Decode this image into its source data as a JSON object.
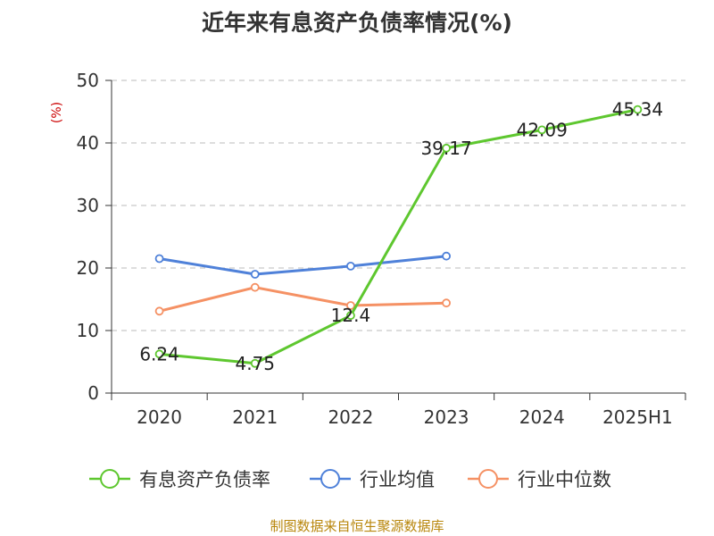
{
  "chart_data": {
    "type": "line",
    "title": "近年来有息资产负债率情况(%)",
    "ylabel": "(%)",
    "categories": [
      "2020",
      "2021",
      "2022",
      "2023",
      "2024",
      "2025H1"
    ],
    "ylim": [
      0,
      50
    ],
    "yticks": [
      0,
      10,
      20,
      30,
      40,
      50
    ],
    "grid": true,
    "legend_position": "bottom",
    "series": [
      {
        "name": "有息资产负债率",
        "color": "#5ec72f",
        "values": [
          6.24,
          4.75,
          12.4,
          39.17,
          42.09,
          45.34
        ],
        "labels": [
          "6.24",
          "4.75",
          "12.4",
          "39.17",
          "42.09",
          "45.34"
        ]
      },
      {
        "name": "行业均值",
        "color": "#4f81d9",
        "values": [
          21.5,
          19.0,
          20.3,
          21.9,
          null,
          null
        ]
      },
      {
        "name": "行业中位数",
        "color": "#f59164",
        "values": [
          13.1,
          16.9,
          14.0,
          14.4,
          null,
          null
        ]
      }
    ]
  },
  "footer": {
    "source": "制图数据来自恒生聚源数据库"
  }
}
